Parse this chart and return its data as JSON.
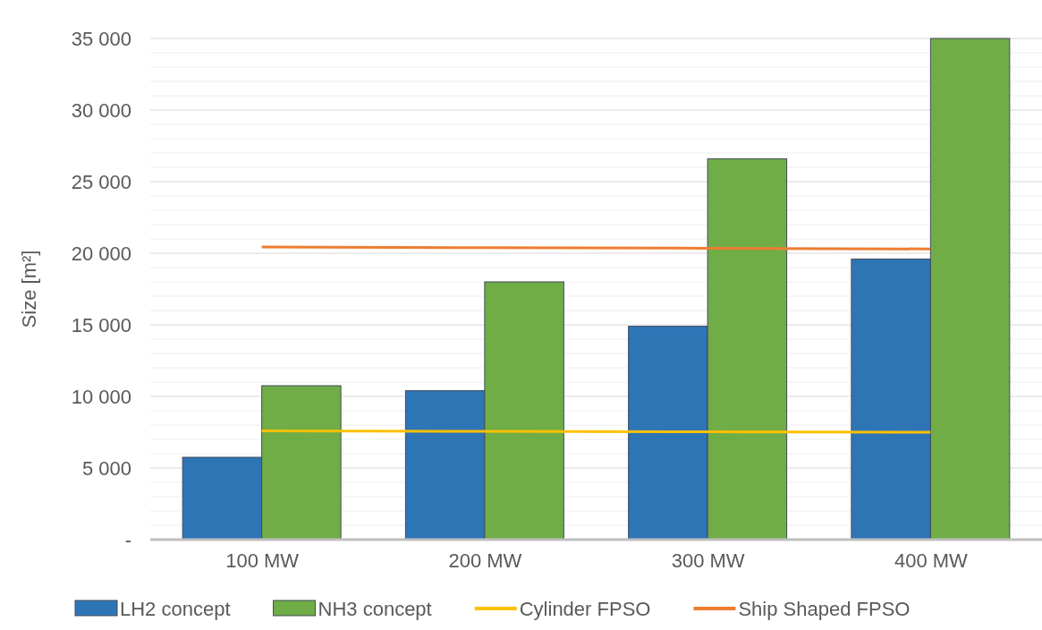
{
  "chart_data": {
    "type": "bar",
    "ylabel": "Size [m²]",
    "categories": [
      "100 MW",
      "200 MW",
      "300 MW",
      "400 MW"
    ],
    "series": [
      {
        "name": "LH2 concept",
        "color": "#2e75b6",
        "values": [
          5750,
          10400,
          14900,
          19600
        ]
      },
      {
        "name": "NH3 concept",
        "color": "#70ad47",
        "values": [
          10750,
          18000,
          26600,
          35000
        ]
      },
      {
        "name": "Cylinder FPSO",
        "type": "line",
        "color": "#ffc000",
        "values": [
          7600,
          7560,
          7530,
          7500
        ]
      },
      {
        "name": "Ship Shaped FPSO",
        "type": "line",
        "color": "#ed7d31",
        "values": [
          20440,
          20390,
          20350,
          20300
        ]
      }
    ],
    "ylim": [
      0,
      35000
    ],
    "yticks": [
      {
        "value": 0,
        "label": "-"
      },
      {
        "value": 1000,
        "label": null
      },
      {
        "value": 2000,
        "label": null
      },
      {
        "value": 3000,
        "label": null
      },
      {
        "value": 4000,
        "label": null
      },
      {
        "value": 5000,
        "label": "5 000"
      },
      {
        "value": 6000,
        "label": null
      },
      {
        "value": 7000,
        "label": null
      },
      {
        "value": 8000,
        "label": null
      },
      {
        "value": 9000,
        "label": null
      },
      {
        "value": 10000,
        "label": "10 000"
      },
      {
        "value": 11000,
        "label": null
      },
      {
        "value": 12000,
        "label": null
      },
      {
        "value": 13000,
        "label": null
      },
      {
        "value": 14000,
        "label": null
      },
      {
        "value": 15000,
        "label": "15 000"
      },
      {
        "value": 16000,
        "label": null
      },
      {
        "value": 17000,
        "label": null
      },
      {
        "value": 18000,
        "label": null
      },
      {
        "value": 19000,
        "label": null
      },
      {
        "value": 20000,
        "label": "20 000"
      },
      {
        "value": 21000,
        "label": null
      },
      {
        "value": 22000,
        "label": null
      },
      {
        "value": 23000,
        "label": null
      },
      {
        "value": 24000,
        "label": null
      },
      {
        "value": 25000,
        "label": "25 000"
      },
      {
        "value": 26000,
        "label": null
      },
      {
        "value": 27000,
        "label": null
      },
      {
        "value": 28000,
        "label": null
      },
      {
        "value": 29000,
        "label": null
      },
      {
        "value": 30000,
        "label": "30 000"
      },
      {
        "value": 31000,
        "label": null
      },
      {
        "value": 32000,
        "label": null
      },
      {
        "value": 33000,
        "label": null
      },
      {
        "value": 34000,
        "label": null
      },
      {
        "value": 35000,
        "label": "35 000"
      }
    ],
    "grid": "y",
    "legend": "bottom"
  }
}
